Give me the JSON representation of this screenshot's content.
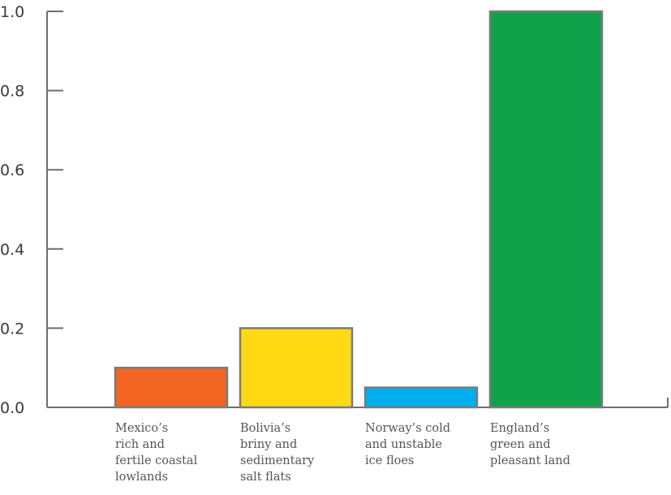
{
  "chart_data": {
    "type": "bar",
    "title": "",
    "xlabel": "",
    "ylabel": "",
    "ylim": [
      0,
      1.0
    ],
    "yticks": [
      "0.0",
      "0.2",
      "0.4",
      "0.6",
      "0.8",
      "1.0"
    ],
    "grid": false,
    "legend": "none",
    "categories": [
      [
        "Mexico’s",
        "rich and",
        "fertile coastal",
        "lowlands"
      ],
      [
        "Bolivia’s",
        "briny and",
        "sedimentary",
        "salt flats"
      ],
      [
        "Norway’s cold",
        "and unstable",
        "ice floes"
      ],
      [
        "England’s",
        "green and",
        "pleasant land"
      ]
    ],
    "values": [
      0.1,
      0.2,
      0.05,
      1.0
    ],
    "colors": [
      "#f26522",
      "#ffd914",
      "#00aeef",
      "#0fa24b"
    ]
  }
}
